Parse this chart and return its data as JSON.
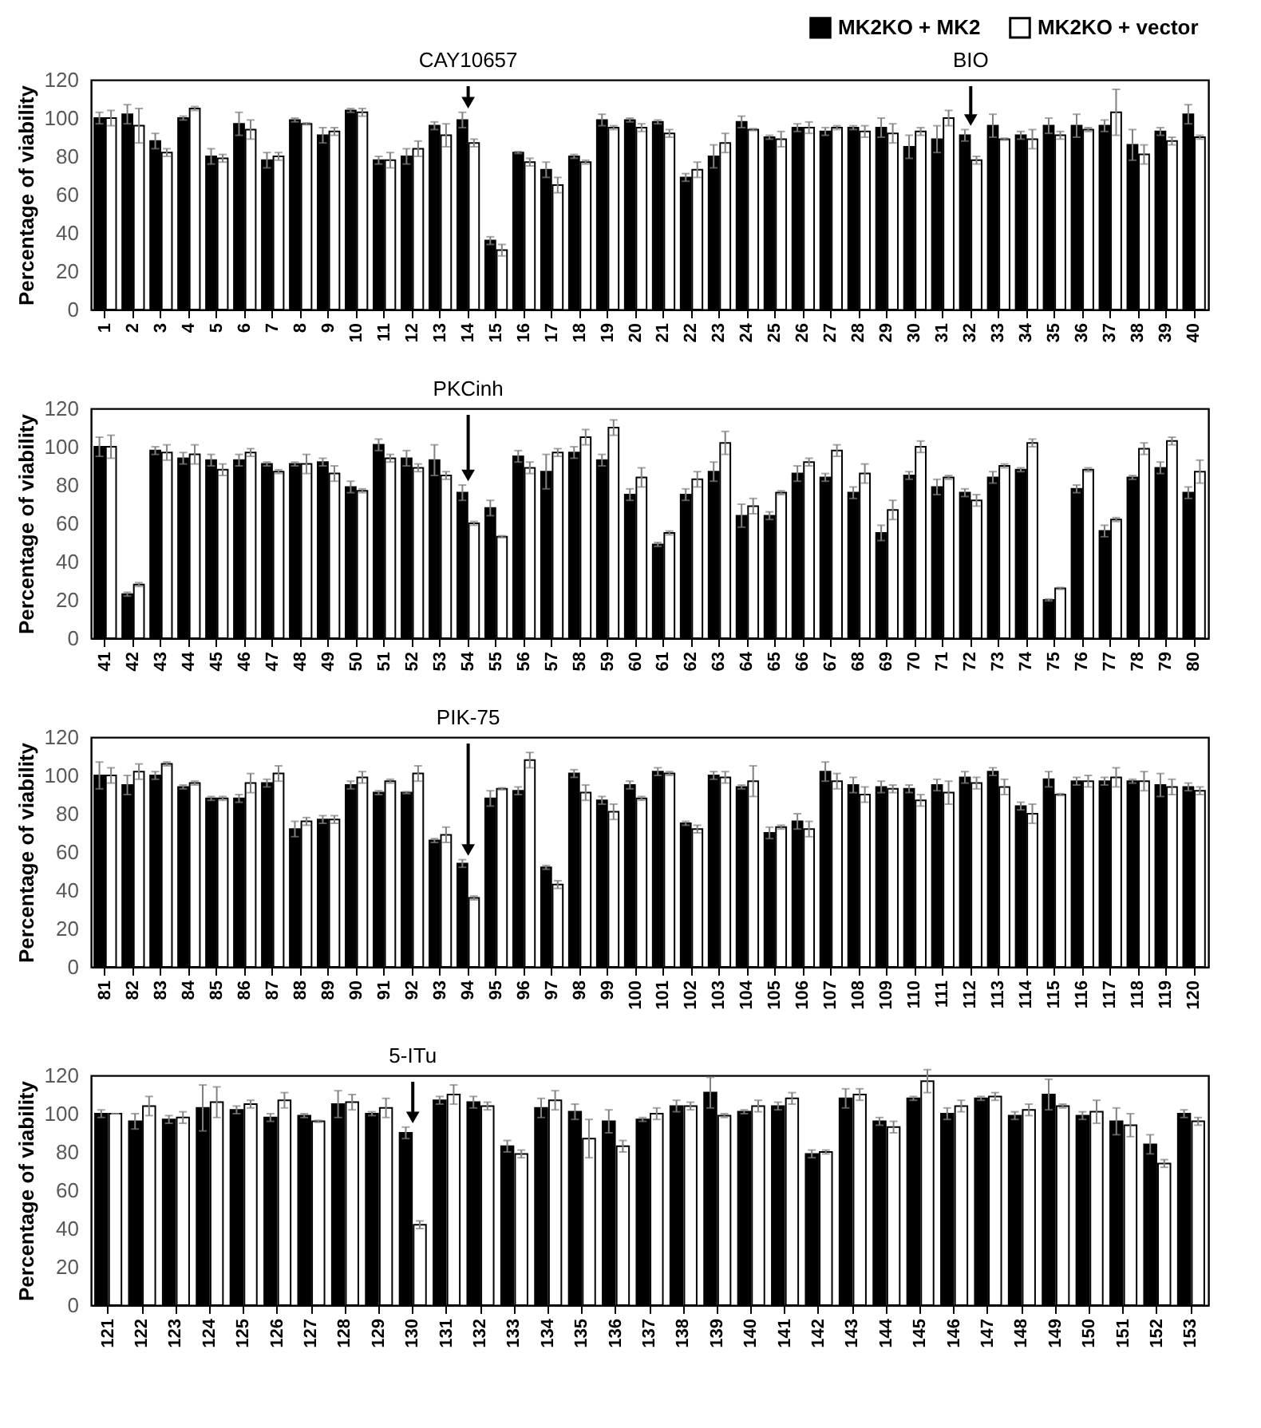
{
  "chart_data": [
    {
      "type": "bar",
      "ylabel": "Percentage of viability",
      "ylim": [
        0,
        120
      ],
      "yticks": [
        0,
        20,
        40,
        60,
        80,
        100,
        120
      ],
      "grid": false,
      "legend": "top right",
      "categories": [
        "1",
        "2",
        "3",
        "4",
        "5",
        "6",
        "7",
        "8",
        "9",
        "10",
        "11",
        "12",
        "13",
        "14",
        "15",
        "16",
        "17",
        "18",
        "19",
        "20",
        "21",
        "22",
        "23",
        "24",
        "25",
        "26",
        "27",
        "28",
        "29",
        "30",
        "31",
        "32",
        "33",
        "34",
        "35",
        "36",
        "37",
        "38",
        "39",
        "40"
      ],
      "annotations": [
        {
          "text": "CAY10657",
          "x": "14",
          "y": 103
        },
        {
          "text": "BIO",
          "x": "32",
          "y": 94
        }
      ],
      "series": [
        {
          "name": "MK2KO + MK2",
          "color": "#000000",
          "values": [
            100,
            102,
            88,
            100,
            80,
            97,
            78,
            99,
            91,
            104,
            78,
            80,
            96,
            99,
            36,
            82,
            73,
            80,
            99,
            99,
            98,
            69,
            80,
            98,
            90,
            95,
            93,
            95,
            95,
            85,
            89,
            91,
            96,
            91,
            96,
            96,
            96,
            86,
            93,
            102
          ],
          "errors": [
            3,
            5,
            4,
            1,
            4,
            6,
            4,
            1,
            4,
            1,
            2,
            4,
            2,
            4,
            2,
            0.5,
            4,
            1,
            3,
            1,
            1,
            2,
            6,
            3,
            1,
            2,
            2,
            1,
            5,
            6,
            7,
            3,
            6,
            2,
            4,
            6,
            3,
            8,
            2,
            5
          ]
        },
        {
          "name": "MK2KO + vector",
          "color": "#ffffff",
          "values": [
            100,
            96,
            82,
            105,
            79,
            94,
            80,
            97,
            93,
            103,
            78,
            84,
            91,
            87,
            31,
            77,
            65,
            77,
            95,
            95,
            92,
            73,
            87,
            94,
            89,
            95,
            95,
            93,
            92,
            93,
            100,
            78,
            89,
            89,
            91,
            94,
            103,
            81,
            88,
            90
          ],
          "errors": [
            4,
            9,
            2,
            1,
            2,
            5,
            2,
            0.5,
            2,
            2,
            4,
            4,
            6,
            2,
            3,
            2,
            4,
            1,
            1,
            2,
            2,
            4,
            5,
            0.5,
            4,
            3,
            1,
            3,
            5,
            2,
            4,
            2,
            0.5,
            5,
            2,
            1,
            12,
            5,
            2,
            1
          ]
        }
      ]
    },
    {
      "type": "bar",
      "ylabel": "Percentage of viability",
      "ylim": [
        0,
        120
      ],
      "yticks": [
        0,
        20,
        40,
        60,
        80,
        100,
        120
      ],
      "grid": false,
      "categories": [
        "41",
        "42",
        "43",
        "44",
        "45",
        "46",
        "47",
        "48",
        "49",
        "50",
        "51",
        "52",
        "53",
        "54",
        "55",
        "56",
        "57",
        "58",
        "59",
        "60",
        "61",
        "62",
        "63",
        "64",
        "65",
        "66",
        "67",
        "68",
        "69",
        "70",
        "71",
        "72",
        "73",
        "74",
        "75",
        "76",
        "77",
        "78",
        "79",
        "80"
      ],
      "annotations": [
        {
          "text": "PKCinh",
          "x": "54",
          "y": 80
        }
      ],
      "series": [
        {
          "color": "#000000",
          "values": [
            100,
            23,
            98,
            94,
            93,
            93,
            91,
            91,
            92,
            79,
            101,
            94,
            93,
            76,
            68,
            95,
            87,
            97,
            93,
            75,
            49,
            75,
            87,
            64,
            64,
            86,
            84,
            76,
            55,
            85,
            79,
            76,
            84,
            88,
            20,
            78,
            56,
            84,
            89,
            76
          ],
          "errors": [
            5,
            1,
            2,
            3,
            3,
            3,
            1,
            1,
            2,
            3,
            3,
            4,
            8,
            4,
            4,
            3,
            9,
            3,
            3,
            3,
            1,
            3,
            5,
            6,
            2,
            4,
            2,
            3,
            4,
            2,
            4,
            2,
            3,
            1,
            0.5,
            2,
            3,
            1,
            3,
            3
          ]
        },
        {
          "color": "#ffffff",
          "values": [
            100,
            28,
            97,
            96,
            88,
            97,
            87,
            91,
            86,
            77,
            94,
            89,
            85,
            60,
            53,
            89,
            97,
            105,
            110,
            84,
            55,
            83,
            102,
            69,
            76,
            92,
            98,
            86,
            67,
            100,
            84,
            72,
            90,
            102,
            26,
            88,
            62,
            99,
            103,
            87
          ],
          "errors": [
            6,
            1,
            4,
            5,
            3,
            2,
            1,
            5,
            4,
            1,
            2,
            2,
            2,
            1,
            0.5,
            3,
            2,
            4,
            4,
            5,
            1,
            4,
            6,
            4,
            1,
            2,
            3,
            5,
            5,
            3,
            1,
            3,
            1,
            2,
            0.5,
            1,
            1,
            3,
            2,
            6
          ]
        }
      ]
    },
    {
      "type": "bar",
      "ylabel": "Percentage of viability",
      "ylim": [
        0,
        120
      ],
      "yticks": [
        0,
        20,
        40,
        60,
        80,
        100,
        120
      ],
      "grid": false,
      "categories": [
        "81",
        "82",
        "83",
        "84",
        "85",
        "86",
        "87",
        "88",
        "89",
        "90",
        "91",
        "92",
        "93",
        "94",
        "95",
        "96",
        "97",
        "98",
        "99",
        "100",
        "101",
        "102",
        "103",
        "104",
        "105",
        "106",
        "107",
        "108",
        "109",
        "110",
        "111",
        "112",
        "113",
        "114",
        "115",
        "116",
        "117",
        "118",
        "119",
        "120"
      ],
      "annotations": [
        {
          "text": "PIK-75",
          "x": "94",
          "y": 56
        }
      ],
      "series": [
        {
          "color": "#000000",
          "values": [
            100,
            95,
            100,
            94,
            88,
            88,
            96,
            72,
            77,
            95,
            91,
            91,
            66,
            54,
            88,
            92,
            52,
            101,
            87,
            95,
            102,
            75,
            100,
            94,
            70,
            76,
            102,
            95,
            94,
            93,
            95,
            99,
            102,
            84,
            98,
            97,
            97,
            97,
            95,
            94
          ],
          "errors": [
            7,
            5,
            2,
            1,
            1,
            2,
            2,
            4,
            2,
            2,
            1,
            0.5,
            1,
            2,
            4,
            2,
            1,
            2,
            2,
            2,
            2,
            1,
            2,
            1,
            3,
            4,
            5,
            4,
            3,
            2,
            3,
            3,
            2,
            2,
            4,
            2,
            2,
            1,
            6,
            2
          ]
        },
        {
          "color": "#ffffff",
          "values": [
            100,
            102,
            106,
            96,
            88,
            96,
            101,
            76,
            77,
            99,
            97,
            101,
            69,
            36,
            93,
            108,
            43,
            91,
            81,
            88,
            101,
            72,
            99,
            97,
            73,
            72,
            97,
            90,
            93,
            87,
            91,
            96,
            94,
            80,
            90,
            97,
            99,
            97,
            94,
            92
          ],
          "errors": [
            4,
            4,
            1,
            1,
            1,
            5,
            4,
            2,
            2,
            3,
            1,
            4,
            4,
            1,
            0.5,
            4,
            2,
            4,
            4,
            1,
            1,
            2,
            3,
            8,
            1,
            4,
            4,
            4,
            2,
            3,
            6,
            3,
            4,
            5,
            0.5,
            3,
            5,
            5,
            4,
            2
          ]
        }
      ]
    },
    {
      "type": "bar",
      "ylabel": "Percentage of viability",
      "ylim": [
        0,
        120
      ],
      "yticks": [
        0,
        20,
        40,
        60,
        80,
        100,
        120
      ],
      "grid": false,
      "categories": [
        "121",
        "122",
        "123",
        "124",
        "125",
        "126",
        "127",
        "128",
        "129",
        "130",
        "131",
        "132",
        "133",
        "134",
        "135",
        "136",
        "137",
        "138",
        "139",
        "140",
        "141",
        "142",
        "143",
        "144",
        "145",
        "146",
        "147",
        "148",
        "149",
        "150",
        "151",
        "152",
        "153"
      ],
      "annotations": [
        {
          "text": "5-ITu",
          "x": "130",
          "y": 93
        }
      ],
      "series": [
        {
          "color": "#000000",
          "values": [
            100,
            96,
            97,
            103,
            102,
            98,
            99,
            105,
            100,
            90,
            107,
            106,
            83,
            103,
            101,
            96,
            97,
            104,
            111,
            101,
            104,
            79,
            108,
            96,
            108,
            100,
            108,
            99,
            110,
            99,
            96,
            84,
            100
          ],
          "errors": [
            2,
            4,
            2,
            12,
            2,
            2,
            1,
            7,
            1,
            3,
            2,
            3,
            3,
            5,
            4,
            6,
            1,
            3,
            8,
            1,
            2,
            2,
            5,
            2,
            1,
            3,
            1,
            2,
            8,
            2,
            7,
            5,
            2
          ]
        },
        {
          "color": "#ffffff",
          "values": [
            100,
            104,
            98,
            106,
            105,
            107,
            96,
            106,
            103,
            42,
            110,
            104,
            79,
            107,
            87,
            83,
            100,
            104,
            99,
            104,
            108,
            80,
            110,
            93,
            117,
            104,
            109,
            102,
            104,
            101,
            94,
            74,
            96
          ],
          "errors": [
            0,
            5,
            3,
            8,
            2,
            4,
            0.5,
            4,
            5,
            2,
            5,
            2,
            2,
            5,
            10,
            3,
            3,
            2,
            1,
            3,
            3,
            1,
            3,
            3,
            6,
            3,
            2,
            3,
            1,
            6,
            6,
            2,
            2
          ]
        }
      ]
    }
  ]
}
